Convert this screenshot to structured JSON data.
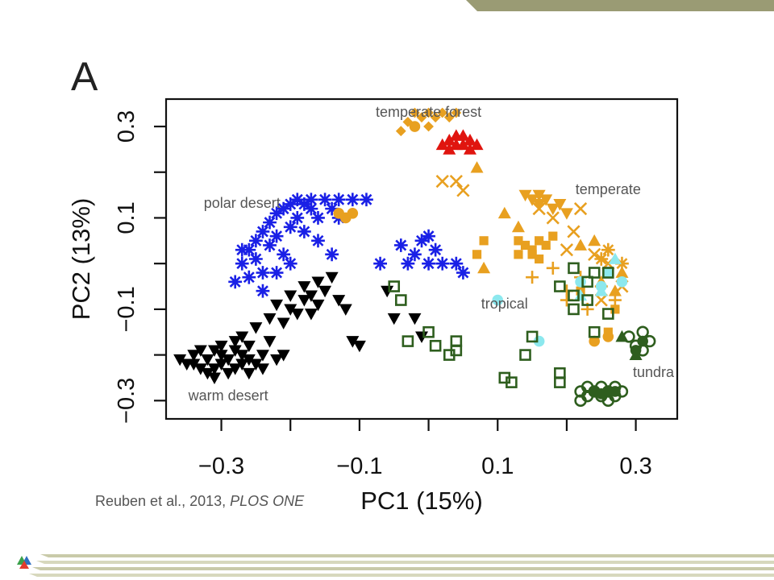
{
  "slide": {
    "panel_letter": "A",
    "citation_text": "Reuben et al., 2013, ",
    "citation_journal": "PLOS ONE",
    "colors": {
      "header": "#9a9b74",
      "footer": "#c9caa9",
      "logo": [
        "#e23b2e",
        "#3aa04a",
        "#2f6fc1"
      ]
    }
  },
  "chart_data": {
    "type": "scatter",
    "xlabel": "PC1 (15%)",
    "ylabel": "PC2 (13%)",
    "xlim": [
      -0.38,
      0.36
    ],
    "ylim": [
      -0.34,
      0.36
    ],
    "xticks": [
      -0.3,
      -0.2,
      -0.1,
      0.0,
      0.1,
      0.2,
      0.3
    ],
    "xtick_labels": [
      "−0.3",
      "",
      "−0.1",
      "",
      "0.1",
      "",
      "0.3"
    ],
    "yticks": [
      -0.3,
      -0.2,
      -0.1,
      0.0,
      0.1,
      0.2,
      0.3
    ],
    "ytick_labels": [
      "−0.3",
      "",
      "−0.1",
      "",
      "0.1",
      "",
      "0.3"
    ],
    "grid": false,
    "annotations": [
      {
        "text": "temperate forest",
        "x": 0.0,
        "y": 0.33
      },
      {
        "text": "polar desert",
        "x": -0.27,
        "y": 0.13
      },
      {
        "text": "temperate",
        "x": 0.26,
        "y": 0.16
      },
      {
        "text": "tropical",
        "x": 0.11,
        "y": -0.09
      },
      {
        "text": "warm desert",
        "x": -0.29,
        "y": -0.29
      },
      {
        "text": "tundra",
        "x": 0.33,
        "y": -0.24
      }
    ],
    "series": [
      {
        "color": "#000000",
        "marker": "triangle-down",
        "points": [
          [
            -0.36,
            -0.21
          ],
          [
            -0.35,
            -0.22
          ],
          [
            -0.34,
            -0.22
          ],
          [
            -0.33,
            -0.23
          ],
          [
            -0.32,
            -0.24
          ],
          [
            -0.32,
            -0.21
          ],
          [
            -0.31,
            -0.19
          ],
          [
            -0.31,
            -0.23
          ],
          [
            -0.3,
            -0.22
          ],
          [
            -0.3,
            -0.2
          ],
          [
            -0.3,
            -0.18
          ],
          [
            -0.29,
            -0.24
          ],
          [
            -0.29,
            -0.21
          ],
          [
            -0.28,
            -0.23
          ],
          [
            -0.28,
            -0.19
          ],
          [
            -0.28,
            -0.17
          ],
          [
            -0.27,
            -0.22
          ],
          [
            -0.27,
            -0.2
          ],
          [
            -0.27,
            -0.16
          ],
          [
            -0.26,
            -0.24
          ],
          [
            -0.26,
            -0.21
          ],
          [
            -0.26,
            -0.18
          ],
          [
            -0.25,
            -0.22
          ],
          [
            -0.25,
            -0.14
          ],
          [
            -0.24,
            -0.23
          ],
          [
            -0.24,
            -0.2
          ],
          [
            -0.23,
            -0.12
          ],
          [
            -0.23,
            -0.17
          ],
          [
            -0.22,
            -0.21
          ],
          [
            -0.22,
            -0.09
          ],
          [
            -0.21,
            -0.2
          ],
          [
            -0.21,
            -0.13
          ],
          [
            -0.2,
            -0.1
          ],
          [
            -0.2,
            -0.07
          ],
          [
            -0.19,
            -0.11
          ],
          [
            -0.18,
            -0.08
          ],
          [
            -0.18,
            -0.05
          ],
          [
            -0.17,
            -0.11
          ],
          [
            -0.17,
            -0.07
          ],
          [
            -0.16,
            -0.09
          ],
          [
            -0.16,
            -0.04
          ],
          [
            -0.15,
            -0.06
          ],
          [
            -0.14,
            -0.03
          ],
          [
            -0.13,
            -0.08
          ],
          [
            -0.12,
            -0.1
          ],
          [
            -0.11,
            -0.17
          ],
          [
            -0.06,
            -0.06
          ],
          [
            -0.05,
            -0.12
          ],
          [
            -0.02,
            -0.12
          ],
          [
            -0.01,
            -0.16
          ],
          [
            -0.1,
            -0.18
          ],
          [
            -0.34,
            -0.2
          ],
          [
            -0.33,
            -0.19
          ],
          [
            -0.31,
            -0.25
          ]
        ]
      },
      {
        "color": "#1a20e6",
        "marker": "asterisk",
        "points": [
          [
            -0.28,
            -0.04
          ],
          [
            -0.27,
            0.0
          ],
          [
            -0.26,
            -0.03
          ],
          [
            -0.26,
            0.03
          ],
          [
            -0.25,
            0.05
          ],
          [
            -0.25,
            0.01
          ],
          [
            -0.24,
            -0.02
          ],
          [
            -0.24,
            0.07
          ],
          [
            -0.23,
            0.04
          ],
          [
            -0.23,
            0.09
          ],
          [
            -0.22,
            0.11
          ],
          [
            -0.22,
            0.06
          ],
          [
            -0.21,
            0.12
          ],
          [
            -0.21,
            0.02
          ],
          [
            -0.2,
            0.13
          ],
          [
            -0.2,
            0.08
          ],
          [
            -0.19,
            0.14
          ],
          [
            -0.19,
            0.1
          ],
          [
            -0.18,
            0.13
          ],
          [
            -0.18,
            0.07
          ],
          [
            -0.17,
            0.12
          ],
          [
            -0.17,
            0.14
          ],
          [
            -0.16,
            0.1
          ],
          [
            -0.16,
            0.05
          ],
          [
            -0.15,
            0.14
          ],
          [
            -0.14,
            0.12
          ],
          [
            -0.13,
            0.14
          ],
          [
            -0.11,
            0.14
          ],
          [
            -0.22,
            -0.02
          ],
          [
            -0.2,
            0.0
          ],
          [
            -0.13,
            0.1
          ],
          [
            -0.14,
            0.02
          ],
          [
            -0.09,
            0.14
          ],
          [
            -0.07,
            0.0
          ],
          [
            -0.03,
            -0.0
          ],
          [
            -0.02,
            0.02
          ],
          [
            -0.01,
            0.05
          ],
          [
            0.0,
            0.06
          ],
          [
            0.01,
            0.03
          ],
          [
            0.0,
            0.0
          ],
          [
            0.02,
            0.0
          ],
          [
            0.04,
            0.0
          ],
          [
            0.05,
            -0.02
          ],
          [
            -0.04,
            0.04
          ],
          [
            -0.27,
            0.03
          ],
          [
            -0.24,
            -0.06
          ]
        ]
      },
      {
        "color": "#e8a020",
        "marker": "diamond",
        "points": [
          [
            -0.03,
            0.31
          ],
          [
            -0.02,
            0.33
          ],
          [
            -0.01,
            0.32
          ],
          [
            0.0,
            0.33
          ],
          [
            0.01,
            0.32
          ],
          [
            0.02,
            0.33
          ],
          [
            0.03,
            0.32
          ],
          [
            0.04,
            0.33
          ],
          [
            -0.04,
            0.29
          ],
          [
            0.0,
            0.3
          ]
        ]
      },
      {
        "color": "#e8a020",
        "marker": "circle",
        "points": [
          [
            -0.13,
            0.11
          ],
          [
            -0.12,
            0.1
          ],
          [
            -0.11,
            0.11
          ],
          [
            0.24,
            -0.17
          ],
          [
            0.26,
            -0.16
          ],
          [
            -0.02,
            0.3
          ]
        ]
      },
      {
        "color": "#e8a020",
        "marker": "square",
        "points": [
          [
            0.13,
            0.05
          ],
          [
            0.14,
            0.04
          ],
          [
            0.15,
            0.03
          ],
          [
            0.16,
            0.05
          ],
          [
            0.17,
            0.04
          ],
          [
            0.18,
            0.06
          ],
          [
            0.15,
            0.02
          ],
          [
            0.13,
            0.02
          ],
          [
            0.08,
            0.05
          ],
          [
            0.07,
            0.02
          ],
          [
            0.16,
            0.01
          ],
          [
            0.22,
            -0.06
          ],
          [
            0.27,
            -0.1
          ],
          [
            0.26,
            -0.15
          ]
        ]
      },
      {
        "color": "#e8a020",
        "marker": "triangle-up",
        "points": [
          [
            0.07,
            0.21
          ],
          [
            0.11,
            0.11
          ],
          [
            0.13,
            0.08
          ],
          [
            0.08,
            -0.01
          ],
          [
            0.25,
            -0.04
          ],
          [
            0.27,
            -0.06
          ],
          [
            0.24,
            0.05
          ],
          [
            0.22,
            0.04
          ],
          [
            0.28,
            -0.02
          ]
        ]
      },
      {
        "color": "#e8a020",
        "marker": "triangle-down",
        "points": [
          [
            0.14,
            0.15
          ],
          [
            0.15,
            0.14
          ],
          [
            0.16,
            0.13
          ],
          [
            0.17,
            0.14
          ],
          [
            0.18,
            0.12
          ],
          [
            0.19,
            0.13
          ],
          [
            0.2,
            0.11
          ],
          [
            0.16,
            0.15
          ]
        ]
      },
      {
        "color": "#e8a020",
        "marker": "x",
        "points": [
          [
            0.02,
            0.18
          ],
          [
            0.04,
            0.18
          ],
          [
            0.05,
            0.16
          ],
          [
            0.16,
            0.12
          ],
          [
            0.18,
            0.1
          ],
          [
            0.21,
            0.07
          ],
          [
            0.24,
            0.02
          ],
          [
            0.26,
            -0.0
          ],
          [
            0.28,
            -0.05
          ],
          [
            0.25,
            -0.08
          ],
          [
            0.2,
            0.03
          ],
          [
            0.22,
            0.12
          ]
        ]
      },
      {
        "color": "#e8a020",
        "marker": "plus",
        "points": [
          [
            0.15,
            -0.03
          ],
          [
            0.18,
            -0.01
          ],
          [
            0.2,
            -0.06
          ],
          [
            0.22,
            -0.03
          ],
          [
            0.25,
            -0.05
          ],
          [
            0.27,
            -0.08
          ],
          [
            0.23,
            -0.1
          ],
          [
            0.2,
            -0.08
          ]
        ]
      },
      {
        "color": "#e8a020",
        "marker": "asterisk",
        "points": [
          [
            0.26,
            0.03
          ],
          [
            0.28,
            0.0
          ],
          [
            0.25,
            0.01
          ]
        ]
      },
      {
        "color": "#e0150f",
        "marker": "triangle-up",
        "points": [
          [
            0.03,
            0.27
          ],
          [
            0.04,
            0.26
          ],
          [
            0.05,
            0.28
          ],
          [
            0.06,
            0.27
          ],
          [
            0.07,
            0.26
          ],
          [
            0.04,
            0.28
          ],
          [
            0.03,
            0.25
          ],
          [
            0.06,
            0.25
          ],
          [
            0.05,
            0.26
          ],
          [
            0.02,
            0.26
          ]
        ]
      },
      {
        "color": "#8ce8ee",
        "marker": "circle",
        "points": [
          [
            0.1,
            -0.08
          ],
          [
            0.16,
            -0.17
          ],
          [
            0.28,
            -0.04
          ],
          [
            0.26,
            -0.02
          ],
          [
            0.25,
            -0.05
          ],
          [
            0.22,
            -0.04
          ]
        ]
      },
      {
        "color": "#8ce8ee",
        "marker": "triangle-up",
        "points": [
          [
            0.27,
            0.01
          ],
          [
            0.25,
            -0.06
          ],
          [
            0.22,
            -0.07
          ]
        ]
      },
      {
        "color": "#2e5e1e",
        "marker": "open-square",
        "points": [
          [
            -0.05,
            -0.05
          ],
          [
            -0.04,
            -0.08
          ],
          [
            -0.03,
            -0.17
          ],
          [
            0.0,
            -0.15
          ],
          [
            0.01,
            -0.18
          ],
          [
            0.03,
            -0.2
          ],
          [
            0.04,
            -0.19
          ],
          [
            0.04,
            -0.17
          ],
          [
            0.11,
            -0.25
          ],
          [
            0.12,
            -0.26
          ],
          [
            0.14,
            -0.2
          ],
          [
            0.15,
            -0.16
          ],
          [
            0.19,
            -0.24
          ],
          [
            0.19,
            -0.26
          ],
          [
            0.19,
            -0.05
          ],
          [
            0.21,
            -0.07
          ],
          [
            0.21,
            -0.1
          ],
          [
            0.23,
            -0.04
          ],
          [
            0.24,
            -0.02
          ],
          [
            0.26,
            -0.02
          ],
          [
            0.24,
            -0.15
          ],
          [
            0.23,
            -0.08
          ],
          [
            0.21,
            -0.01
          ],
          [
            0.26,
            -0.11
          ]
        ]
      },
      {
        "color": "#2e5e1e",
        "marker": "open-circle",
        "points": [
          [
            0.22,
            -0.28
          ],
          [
            0.23,
            -0.29
          ],
          [
            0.24,
            -0.28
          ],
          [
            0.25,
            -0.29
          ],
          [
            0.26,
            -0.28
          ],
          [
            0.27,
            -0.29
          ],
          [
            0.28,
            -0.28
          ],
          [
            0.23,
            -0.27
          ],
          [
            0.25,
            -0.27
          ],
          [
            0.27,
            -0.27
          ],
          [
            0.29,
            -0.16
          ],
          [
            0.3,
            -0.18
          ],
          [
            0.31,
            -0.15
          ],
          [
            0.32,
            -0.17
          ],
          [
            0.31,
            -0.19
          ],
          [
            0.22,
            -0.3
          ],
          [
            0.26,
            -0.3
          ]
        ]
      },
      {
        "color": "#2e5e1e",
        "marker": "circle",
        "points": [
          [
            0.24,
            -0.28
          ],
          [
            0.25,
            -0.285
          ],
          [
            0.26,
            -0.28
          ],
          [
            0.27,
            -0.28
          ],
          [
            0.3,
            -0.19
          ],
          [
            0.31,
            -0.17
          ]
        ]
      },
      {
        "color": "#2e5e1e",
        "marker": "triangle-up",
        "points": [
          [
            0.28,
            -0.16
          ],
          [
            0.3,
            -0.2
          ]
        ]
      }
    ]
  }
}
